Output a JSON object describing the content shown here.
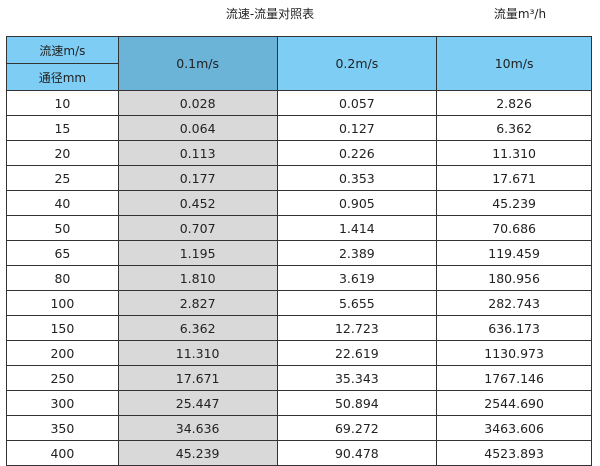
{
  "title": "流速-流量对照表",
  "unit": "流量m³/h",
  "header": {
    "velocity_label": "流速m/s",
    "diameter_label": "通径mm",
    "columns": [
      "0.1m/s",
      "0.2m/s",
      "10m/s"
    ]
  },
  "colors": {
    "header": "#7ecdf4",
    "highlight_header": "#6cb3d8",
    "highlight_column": "#d9d9d9"
  },
  "rows": [
    [
      "10",
      "0.028",
      "0.057",
      "2.826"
    ],
    [
      "15",
      "0.064",
      "0.127",
      "6.362"
    ],
    [
      "20",
      "0.113",
      "0.226",
      "11.310"
    ],
    [
      "25",
      "0.177",
      "0.353",
      "17.671"
    ],
    [
      "40",
      "0.452",
      "0.905",
      "45.239"
    ],
    [
      "50",
      "0.707",
      "1.414",
      "70.686"
    ],
    [
      "65",
      "1.195",
      "2.389",
      "119.459"
    ],
    [
      "80",
      "1.810",
      "3.619",
      "180.956"
    ],
    [
      "100",
      "2.827",
      "5.655",
      "282.743"
    ],
    [
      "150",
      "6.362",
      "12.723",
      "636.173"
    ],
    [
      "200",
      "11.310",
      "22.619",
      "1130.973"
    ],
    [
      "250",
      "17.671",
      "35.343",
      "1767.146"
    ],
    [
      "300",
      "25.447",
      "50.894",
      "2544.690"
    ],
    [
      "350",
      "34.636",
      "69.272",
      "3463.606"
    ],
    [
      "400",
      "45.239",
      "90.478",
      "4523.893"
    ]
  ]
}
